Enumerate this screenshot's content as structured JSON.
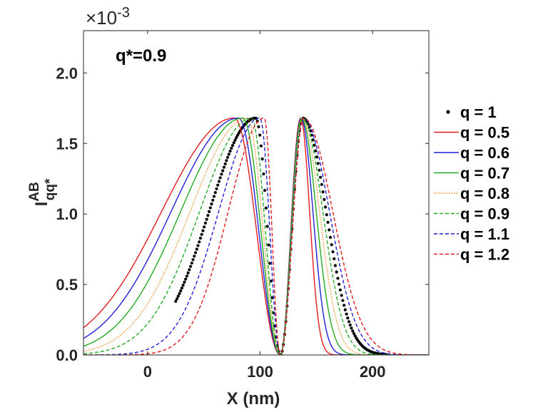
{
  "chart_data": {
    "type": "line",
    "ylabel": "I",
    "ylabel_sup": "AB",
    "ylabel_sub": "qq*",
    "xlabel": "X (nm)",
    "y_exponent": "×10",
    "y_exponent_power": "-3",
    "annotation": "q*=0.9",
    "xlim": [
      -57,
      250
    ],
    "ylim": [
      0,
      2.3
    ],
    "y_multiplier": 0.001,
    "xticks": [
      0,
      100,
      200
    ],
    "xtick_labels": [
      "0",
      "100",
      "200"
    ],
    "yticks": [
      0,
      0.5,
      1.0,
      1.5,
      2.0
    ],
    "ytick_labels": [
      "0.0",
      "0.5",
      "1.0",
      "1.5",
      "2.0"
    ],
    "grid": false,
    "legend_position": "right",
    "center": 118,
    "peak": 1.68,
    "series": [
      {
        "name": "q = 1",
        "q": 1.0,
        "color": "#000000",
        "style": "dots",
        "x_range": [
          25,
          212
        ]
      },
      {
        "name": "q = 0.5",
        "q": 0.5,
        "color": "#e41a1c",
        "style": "solid"
      },
      {
        "name": "q = 0.6",
        "q": 0.6,
        "color": "#1f1fd6",
        "style": "solid"
      },
      {
        "name": "q = 0.7",
        "q": 0.7,
        "color": "#22aa22",
        "style": "solid"
      },
      {
        "name": "q = 0.8",
        "q": 0.8,
        "color": "#f08a1c",
        "style": "dotted"
      },
      {
        "name": "q = 0.9",
        "q": 0.9,
        "color": "#22aa22",
        "style": "dashed"
      },
      {
        "name": "q = 1.1",
        "q": 1.1,
        "color": "#1f1fd6",
        "style": "dashed"
      },
      {
        "name": "q = 1.2",
        "q": 1.2,
        "color": "#e41a1c",
        "style": "dashed"
      }
    ]
  }
}
